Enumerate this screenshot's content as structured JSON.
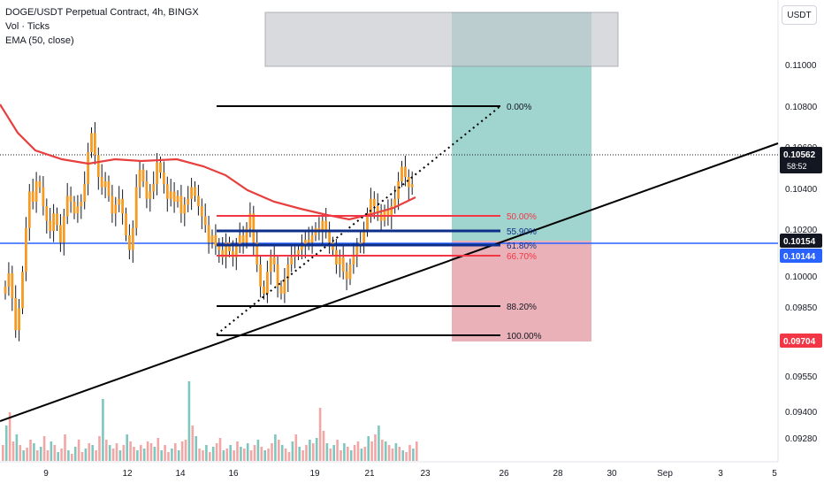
{
  "legend": {
    "title": "DOGE/USDT Perpetual Contract, 4h, BINGX",
    "vol": "Vol · Ticks",
    "ema": "EMA (50, close)"
  },
  "currency": "USDT",
  "price_axis": {
    "ticks": [
      "0.11000",
      "0.10800",
      "0.10600",
      "0.10400",
      "0.10200",
      "0.10000",
      "0.09850",
      "0.09700",
      "0.09550",
      "0.09400",
      "0.09280"
    ],
    "last_price": "0.10562",
    "countdown": "58:52",
    "blue_line_price": "0.10154",
    "blue_line_price2": "0.10144",
    "stop_price": "0.09704"
  },
  "time_axis": {
    "ticks": [
      "9",
      "12",
      "14",
      "16",
      "19",
      "21",
      "23",
      "26",
      "28",
      "30",
      "Sep",
      "3",
      "5"
    ]
  },
  "fib_levels": [
    "0.00%",
    "50.00%",
    "55.90%",
    "61.80%",
    "66.70%",
    "88.20%",
    "100.00%"
  ],
  "colors": {
    "candle": "#f59a23",
    "ema": "#e83f3f",
    "blue": "#2962ff",
    "fib_red": "#f23645",
    "fib_navy": "#0d2f8a",
    "target_zone": "#8fcdc5",
    "stop_zone": "#e8a3ad",
    "vol_up": "#7fc6be",
    "vol_down": "#f0a7a5"
  },
  "chart_data": {
    "type": "candlestick",
    "interval": "4h",
    "x_ticks": [
      "9",
      "12",
      "14",
      "16",
      "19",
      "21",
      "23",
      "26",
      "28",
      "30",
      "Sep",
      "3",
      "5"
    ],
    "y_ticks": [
      0.11,
      0.108,
      0.106,
      0.104,
      0.102,
      0.1,
      0.0985,
      0.097,
      0.0955,
      0.094,
      0.0928
    ],
    "ylim": [
      0.092,
      0.112
    ],
    "last_close": 0.10562,
    "ema_period": 50,
    "fib_retracement": {
      "high": 0.108,
      "low": 0.0972,
      "levels": [
        0.0,
        0.5,
        0.559,
        0.618,
        0.667,
        0.882,
        1.0
      ]
    },
    "long_position": {
      "entry": 0.10154,
      "target": 0.1109,
      "stop": 0.09704
    }
  }
}
